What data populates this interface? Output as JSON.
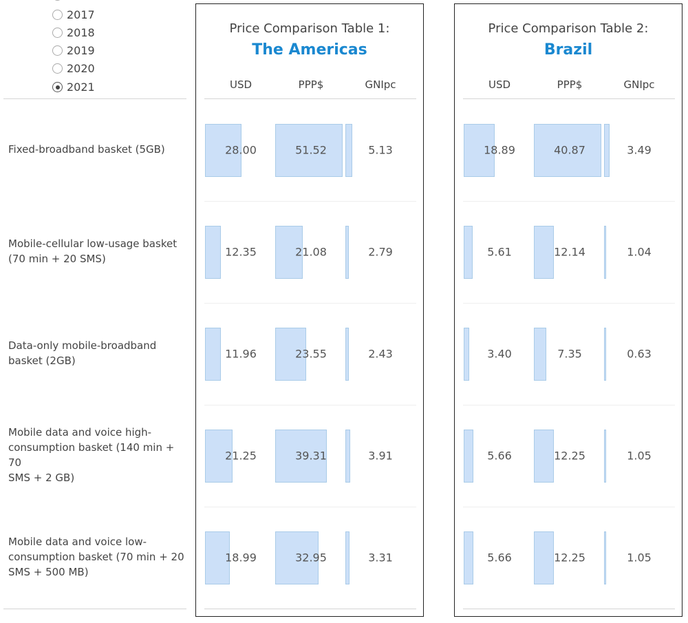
{
  "year_filter": {
    "options": [
      "2017",
      "2018",
      "2019",
      "2020",
      "2021"
    ],
    "selected": "2021"
  },
  "row_labels": [
    "Fixed-broadband basket (5GB)",
    "Mobile-cellular low-usage basket\n(70 min + 20 SMS)",
    "Data-only mobile-broadband\nbasket (2GB)",
    "Mobile data and voice high-\nconsumption basket (140 min + 70\nSMS + 2 GB)",
    "Mobile data and voice low-\nconsumption basket (70 min + 20\nSMS + 500 MB)"
  ],
  "tables": [
    {
      "title": "Price Comparison Table 1:",
      "subtitle": "The Americas",
      "columns": [
        "USD",
        "PPP$",
        "GNIpc"
      ],
      "rows": [
        [
          "28.00",
          "51.52",
          "5.13"
        ],
        [
          "12.35",
          "21.08",
          "2.79"
        ],
        [
          "11.96",
          "23.55",
          "2.43"
        ],
        [
          "21.25",
          "39.31",
          "3.91"
        ],
        [
          "18.99",
          "32.95",
          "3.31"
        ]
      ]
    },
    {
      "title": "Price Comparison Table 2:",
      "subtitle": "Brazil",
      "columns": [
        "USD",
        "PPP$",
        "GNIpc"
      ],
      "rows": [
        [
          "18.89",
          "40.87",
          "3.49"
        ],
        [
          "5.61",
          "12.14",
          "1.04"
        ],
        [
          "3.40",
          "7.35",
          "0.63"
        ],
        [
          "5.66",
          "12.25",
          "1.05"
        ],
        [
          "5.66",
          "12.25",
          "1.05"
        ]
      ]
    }
  ],
  "colors": {
    "accent": "#1a88d0",
    "bar_fill": "#cce0f8",
    "bar_border": "#a9cbe8"
  }
}
